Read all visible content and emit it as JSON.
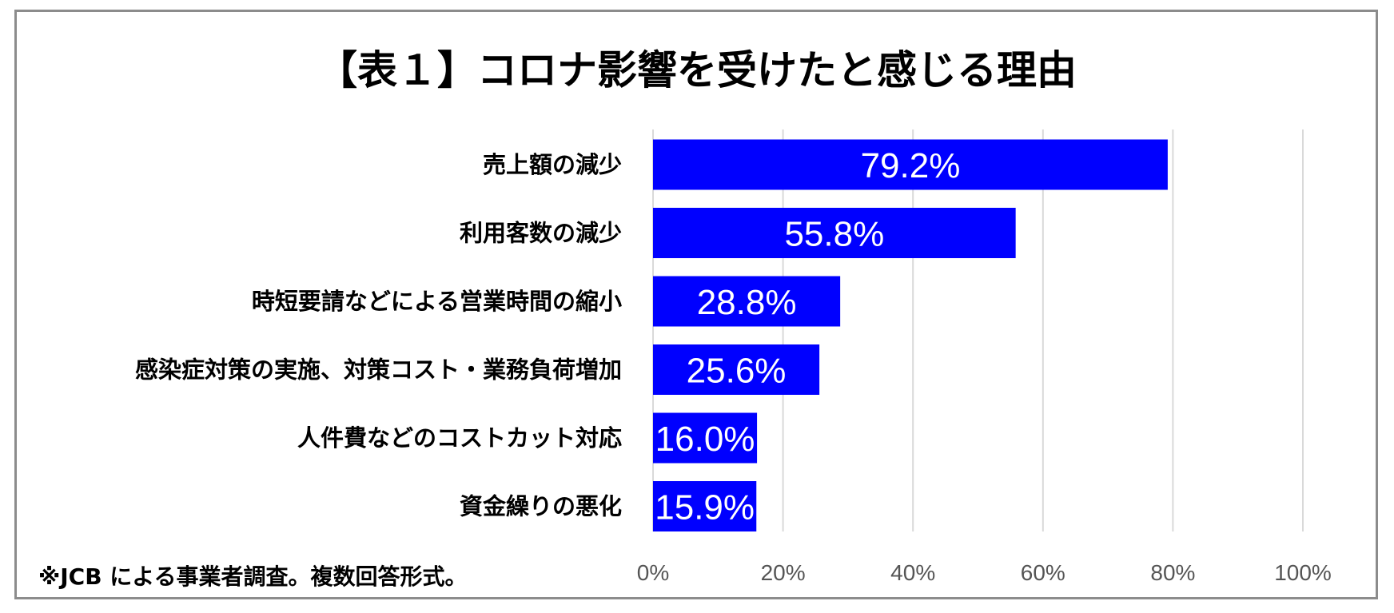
{
  "chart_data": {
    "type": "bar",
    "orientation": "horizontal",
    "title": "【表１】コロナ影響を受けたと感じる理由",
    "categories": [
      "売上額の減少",
      "利用客数の減少",
      "時短要請などによる営業時間の縮小",
      "感染症対策の実施、対策コスト・業務負荷増加",
      "人件費などのコストカット対応",
      "資金繰りの悪化"
    ],
    "values": [
      79.2,
      55.8,
      28.8,
      25.6,
      16.0,
      15.9
    ],
    "value_labels": [
      "79.2%",
      "55.8%",
      "28.8%",
      "25.6%",
      "16.0%",
      "15.9%"
    ],
    "xlim": [
      0,
      100
    ],
    "x_ticks": [
      0,
      20,
      40,
      60,
      80,
      100
    ],
    "x_tick_labels": [
      "0%",
      "20%",
      "40%",
      "60%",
      "80%",
      "100%"
    ],
    "bar_color": "#0000ff",
    "grid": true,
    "legend": "none"
  },
  "note": "※JCB による事業者調査。複数回答形式。"
}
